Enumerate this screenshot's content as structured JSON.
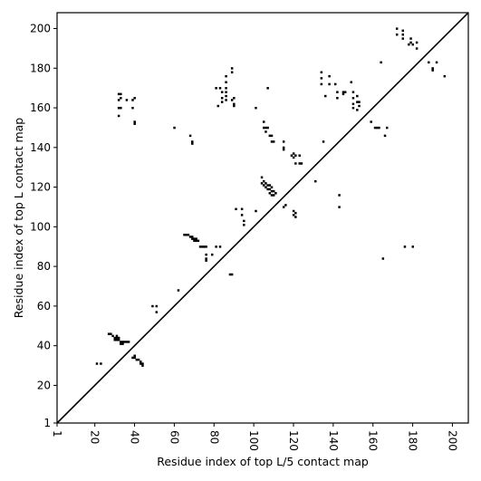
{
  "chart_data": {
    "type": "scatter",
    "title": "",
    "xlabel": "Residue index of top L/5 contact map",
    "ylabel": "Residue index of top L contact map",
    "xlim": [
      1,
      208
    ],
    "ylim": [
      1,
      208
    ],
    "xticks": [
      {
        "value": 1,
        "label": "1"
      },
      {
        "value": 20,
        "label": "20"
      },
      {
        "value": 40,
        "label": "40"
      },
      {
        "value": 60,
        "label": "60"
      },
      {
        "value": 80,
        "label": "80"
      },
      {
        "value": 100,
        "label": "100"
      },
      {
        "value": 120,
        "label": "120"
      },
      {
        "value": 140,
        "label": "140"
      },
      {
        "value": 160,
        "label": "160"
      },
      {
        "value": 180,
        "label": "180"
      },
      {
        "value": 200,
        "label": "200"
      }
    ],
    "yticks": [
      {
        "value": 1,
        "label": "1"
      },
      {
        "value": 20,
        "label": "20"
      },
      {
        "value": 40,
        "label": "40"
      },
      {
        "value": 60,
        "label": "60"
      },
      {
        "value": 80,
        "label": "80"
      },
      {
        "value": 100,
        "label": "100"
      },
      {
        "value": 120,
        "label": "120"
      },
      {
        "value": 140,
        "label": "140"
      },
      {
        "value": 160,
        "label": "160"
      },
      {
        "value": 180,
        "label": "180"
      },
      {
        "value": 200,
        "label": "200"
      }
    ],
    "xtick_rotation": -90,
    "diagonal": {
      "from": [
        1,
        1
      ],
      "to": [
        208,
        208
      ]
    },
    "grid": false,
    "marker_color": "#000000",
    "points": [
      [
        21,
        31
      ],
      [
        23,
        31
      ],
      [
        27,
        46
      ],
      [
        28,
        46
      ],
      [
        29,
        45
      ],
      [
        30,
        44
      ],
      [
        30,
        43
      ],
      [
        31,
        44
      ],
      [
        31,
        43
      ],
      [
        31,
        45
      ],
      [
        32,
        44
      ],
      [
        32,
        43
      ],
      [
        33,
        42
      ],
      [
        33,
        41
      ],
      [
        34,
        42
      ],
      [
        34,
        41
      ],
      [
        35,
        42
      ],
      [
        36,
        42
      ],
      [
        37,
        42
      ],
      [
        39,
        34
      ],
      [
        40,
        35
      ],
      [
        40,
        34
      ],
      [
        41,
        33
      ],
      [
        42,
        33
      ],
      [
        43,
        32
      ],
      [
        43,
        31
      ],
      [
        44,
        31
      ],
      [
        44,
        30
      ],
      [
        49,
        60
      ],
      [
        51,
        60
      ],
      [
        51,
        57
      ],
      [
        62,
        68
      ],
      [
        32,
        167
      ],
      [
        33,
        167
      ],
      [
        32,
        164
      ],
      [
        33,
        165
      ],
      [
        32,
        160
      ],
      [
        33,
        160
      ],
      [
        32,
        156
      ],
      [
        36,
        164
      ],
      [
        39,
        164
      ],
      [
        40,
        165
      ],
      [
        39,
        160
      ],
      [
        40,
        152
      ],
      [
        40,
        153
      ],
      [
        60,
        150
      ],
      [
        68,
        146
      ],
      [
        69,
        143
      ],
      [
        69,
        142
      ],
      [
        65,
        96
      ],
      [
        66,
        96
      ],
      [
        67,
        96
      ],
      [
        68,
        95
      ],
      [
        69,
        95
      ],
      [
        69,
        94
      ],
      [
        70,
        94
      ],
      [
        71,
        94
      ],
      [
        70,
        93
      ],
      [
        71,
        93
      ],
      [
        72,
        93
      ],
      [
        73,
        90
      ],
      [
        74,
        90
      ],
      [
        75,
        90
      ],
      [
        76,
        90
      ],
      [
        76,
        86
      ],
      [
        76,
        84
      ],
      [
        76,
        83
      ],
      [
        79,
        86
      ],
      [
        81,
        90
      ],
      [
        83,
        90
      ],
      [
        88,
        76
      ],
      [
        89,
        76
      ],
      [
        81,
        170
      ],
      [
        82,
        161
      ],
      [
        83,
        170
      ],
      [
        84,
        168
      ],
      [
        84,
        165
      ],
      [
        84,
        163
      ],
      [
        86,
        176
      ],
      [
        86,
        173
      ],
      [
        86,
        170
      ],
      [
        86,
        168
      ],
      [
        86,
        166
      ],
      [
        86,
        164
      ],
      [
        89,
        180
      ],
      [
        89,
        178
      ],
      [
        89,
        164
      ],
      [
        90,
        165
      ],
      [
        90,
        162
      ],
      [
        90,
        161
      ],
      [
        91,
        109
      ],
      [
        94,
        109
      ],
      [
        94,
        106
      ],
      [
        95,
        103
      ],
      [
        95,
        101
      ],
      [
        101,
        160
      ],
      [
        101,
        108
      ],
      [
        104,
        125
      ],
      [
        104,
        122
      ],
      [
        105,
        123
      ],
      [
        105,
        121
      ],
      [
        106,
        122
      ],
      [
        106,
        120
      ],
      [
        107,
        121
      ],
      [
        107,
        119
      ],
      [
        108,
        121
      ],
      [
        108,
        119
      ],
      [
        108,
        117
      ],
      [
        109,
        120
      ],
      [
        109,
        118
      ],
      [
        109,
        116
      ],
      [
        110,
        118
      ],
      [
        110,
        116
      ],
      [
        111,
        117
      ],
      [
        105,
        153
      ],
      [
        105,
        150
      ],
      [
        106,
        150
      ],
      [
        107,
        150
      ],
      [
        106,
        148
      ],
      [
        107,
        170
      ],
      [
        108,
        146
      ],
      [
        109,
        146
      ],
      [
        109,
        143
      ],
      [
        110,
        143
      ],
      [
        115,
        143
      ],
      [
        115,
        140
      ],
      [
        115,
        139
      ],
      [
        116,
        111
      ],
      [
        115,
        110
      ],
      [
        119,
        136
      ],
      [
        120,
        137
      ],
      [
        120,
        135
      ],
      [
        121,
        136
      ],
      [
        121,
        132
      ],
      [
        123,
        136
      ],
      [
        123,
        132
      ],
      [
        124,
        132
      ],
      [
        120,
        108
      ],
      [
        120,
        106
      ],
      [
        121,
        107
      ],
      [
        121,
        105
      ],
      [
        131,
        123
      ],
      [
        134,
        178
      ],
      [
        134,
        175
      ],
      [
        134,
        172
      ],
      [
        135,
        143
      ],
      [
        136,
        166
      ],
      [
        138,
        176
      ],
      [
        138,
        172
      ],
      [
        141,
        172
      ],
      [
        142,
        168
      ],
      [
        142,
        165
      ],
      [
        143,
        116
      ],
      [
        143,
        110
      ],
      [
        145,
        168
      ],
      [
        145,
        167
      ],
      [
        146,
        168
      ],
      [
        149,
        173
      ],
      [
        150,
        168
      ],
      [
        150,
        165
      ],
      [
        150,
        162
      ],
      [
        150,
        160
      ],
      [
        152,
        166
      ],
      [
        152,
        163
      ],
      [
        153,
        163
      ],
      [
        153,
        161
      ],
      [
        152,
        159
      ],
      [
        159,
        153
      ],
      [
        161,
        150
      ],
      [
        162,
        150
      ],
      [
        163,
        150
      ],
      [
        164,
        183
      ],
      [
        165,
        84
      ],
      [
        166,
        146
      ],
      [
        167,
        150
      ],
      [
        172,
        200
      ],
      [
        172,
        197
      ],
      [
        175,
        199
      ],
      [
        175,
        197
      ],
      [
        175,
        195
      ],
      [
        176,
        90
      ],
      [
        178,
        192
      ],
      [
        179,
        195
      ],
      [
        179,
        193
      ],
      [
        180,
        192
      ],
      [
        180,
        90
      ],
      [
        182,
        193
      ],
      [
        182,
        190
      ],
      [
        188,
        183
      ],
      [
        190,
        180
      ],
      [
        190,
        179
      ],
      [
        192,
        183
      ],
      [
        196,
        176
      ]
    ]
  }
}
